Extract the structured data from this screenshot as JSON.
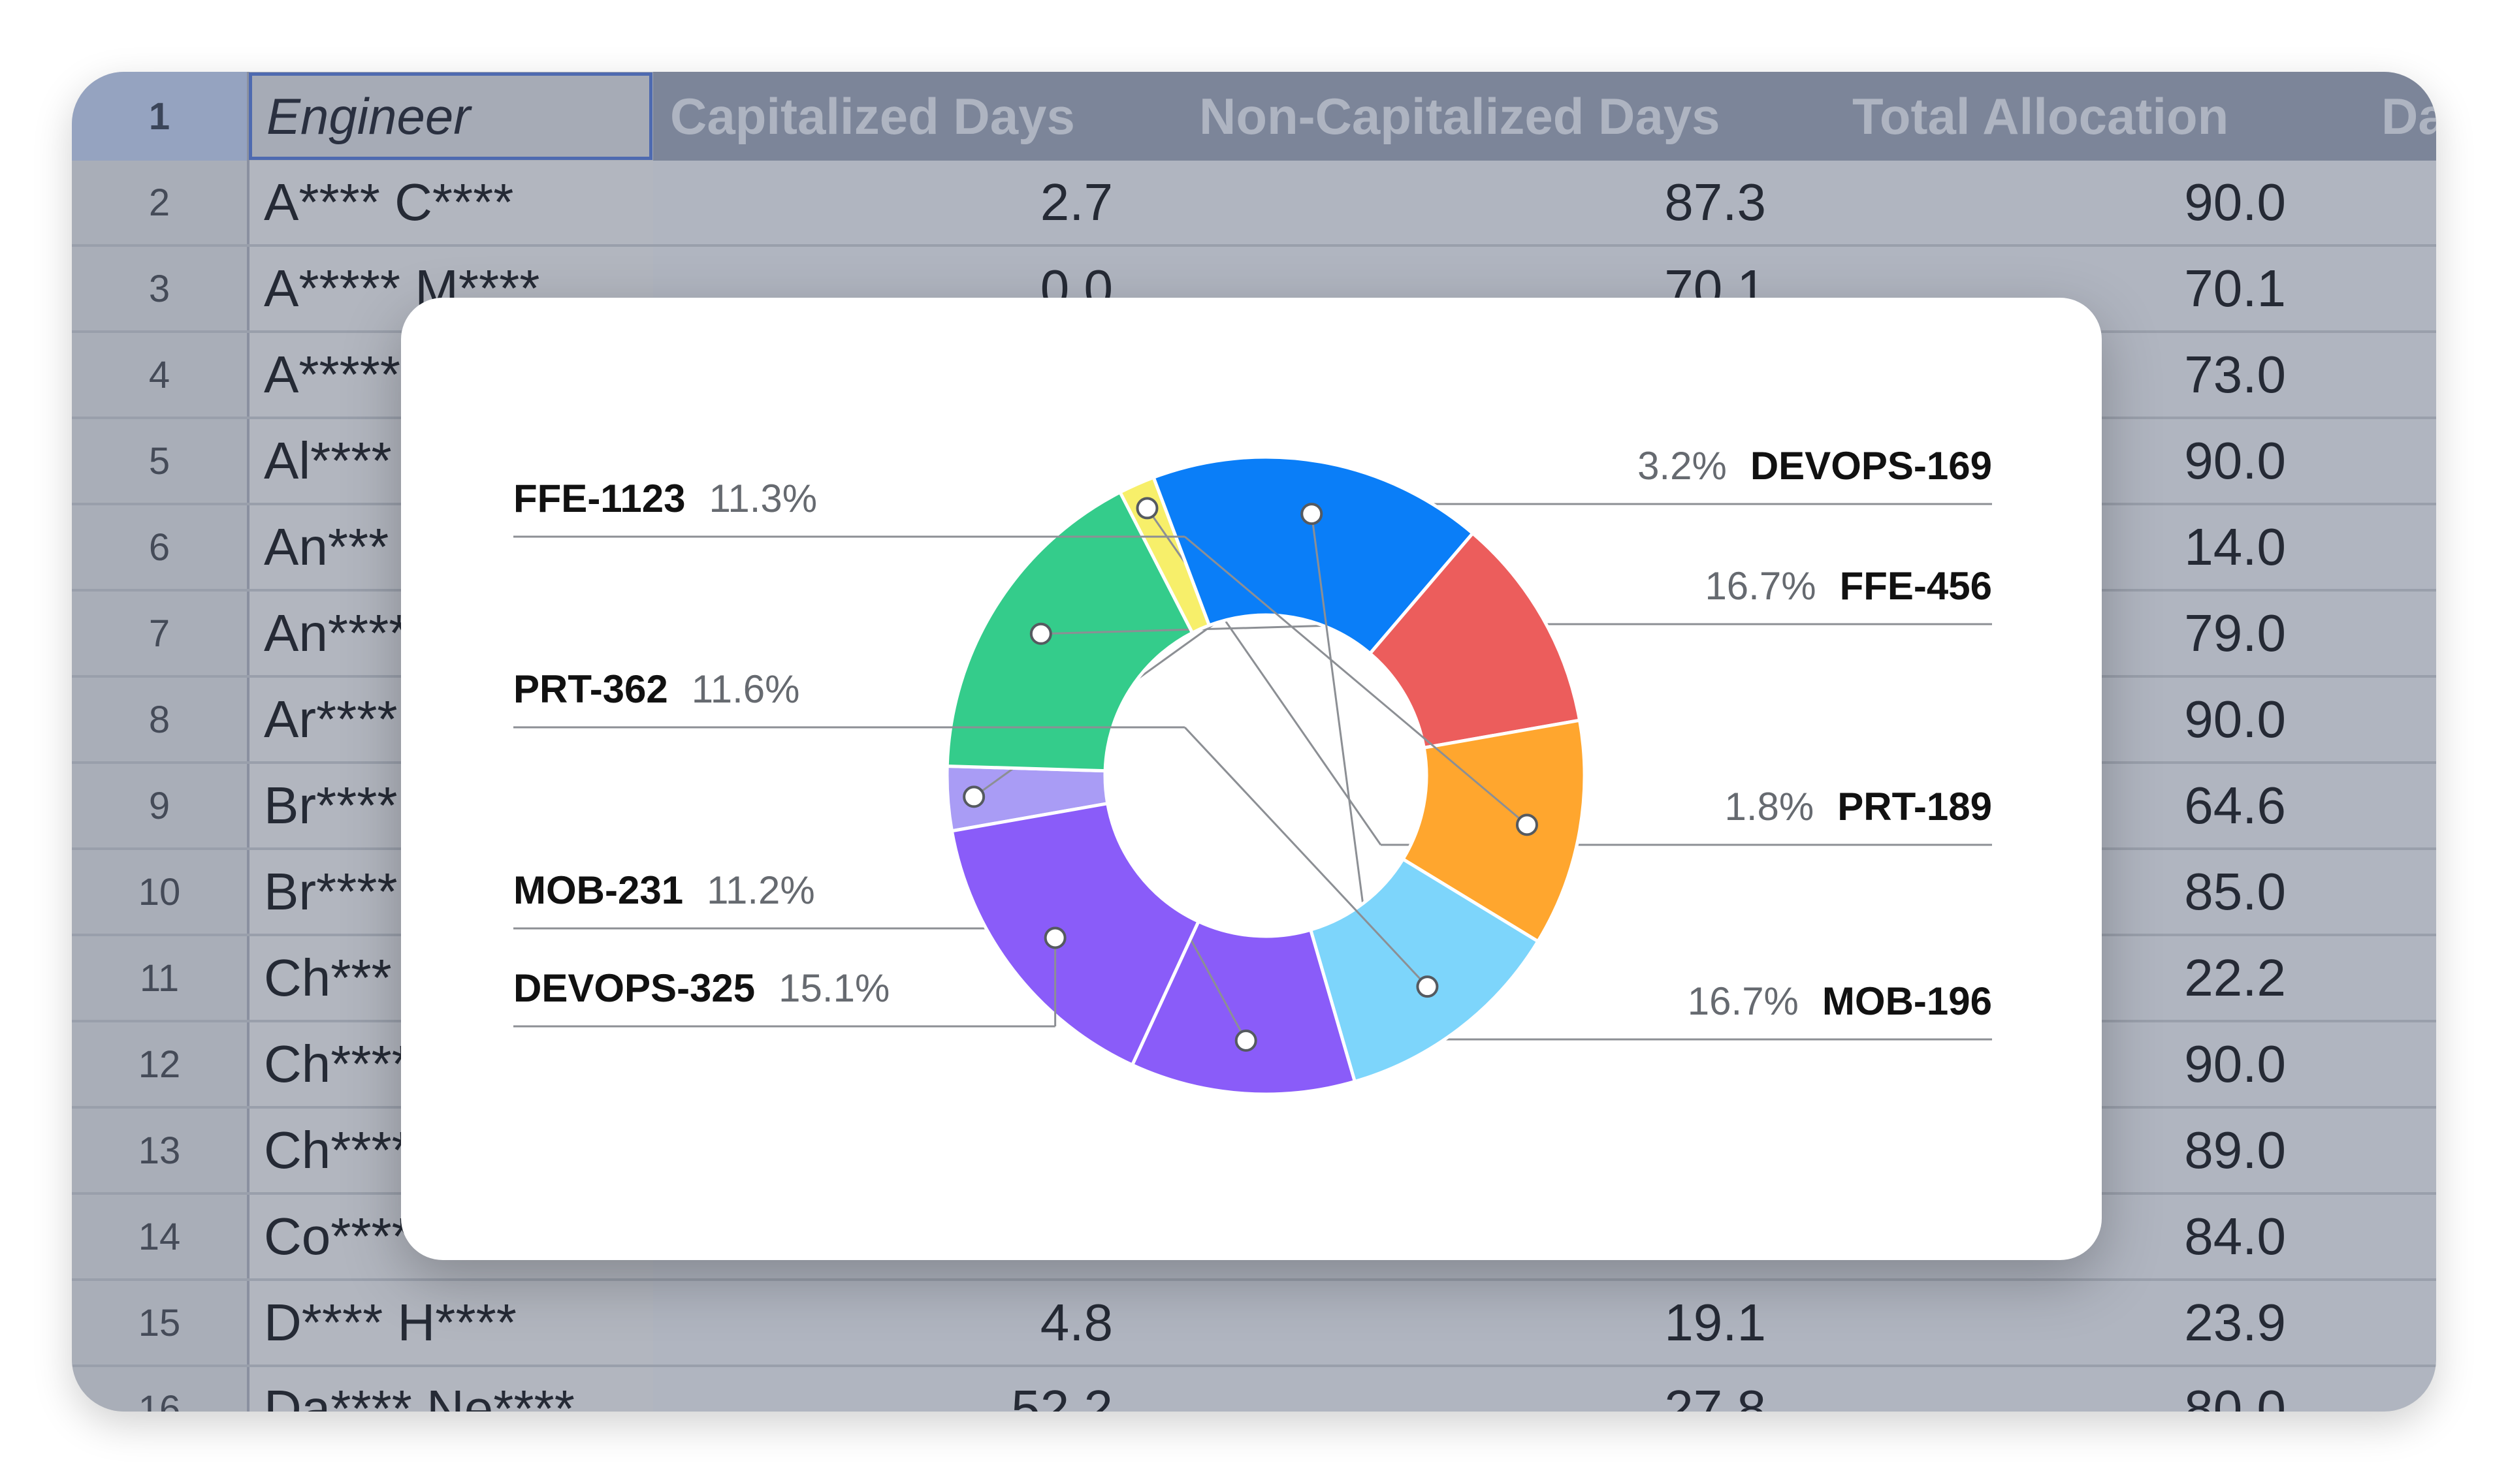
{
  "table": {
    "header": {
      "row_number": "1",
      "columns": [
        "Engineer",
        "Capitalized Days",
        "Non-Capitalized Days",
        "Total Allocation",
        "Da"
      ]
    },
    "rows": [
      {
        "n": "2",
        "engineer": "A**** C****",
        "cap": "2.7",
        "noncap": "87.3",
        "total": "90.0"
      },
      {
        "n": "3",
        "engineer": "A***** M****",
        "cap": "0.0",
        "noncap": "70.1",
        "total": "70.1"
      },
      {
        "n": "4",
        "engineer": "A*****",
        "cap": "",
        "noncap": "",
        "total": "73.0"
      },
      {
        "n": "5",
        "engineer": "Al****",
        "cap": "",
        "noncap": "",
        "total": "90.0"
      },
      {
        "n": "6",
        "engineer": "An***",
        "cap": "",
        "noncap": "",
        "total": "14.0"
      },
      {
        "n": "7",
        "engineer": "An****",
        "cap": "",
        "noncap": "",
        "total": "79.0"
      },
      {
        "n": "8",
        "engineer": "Ar****",
        "cap": "",
        "noncap": "",
        "total": "90.0"
      },
      {
        "n": "9",
        "engineer": "Br****",
        "cap": "",
        "noncap": "",
        "total": "64.6"
      },
      {
        "n": "10",
        "engineer": "Br****",
        "cap": "",
        "noncap": "",
        "total": "85.0"
      },
      {
        "n": "11",
        "engineer": "Ch***",
        "cap": "",
        "noncap": "",
        "total": "22.2"
      },
      {
        "n": "12",
        "engineer": "Ch****",
        "cap": "",
        "noncap": "",
        "total": "90.0"
      },
      {
        "n": "13",
        "engineer": "Ch****",
        "cap": "",
        "noncap": "",
        "total": "89.0"
      },
      {
        "n": "14",
        "engineer": "Co****",
        "cap": "",
        "noncap": "",
        "total": "84.0"
      },
      {
        "n": "15",
        "engineer": "D**** H****",
        "cap": "4.8",
        "noncap": "19.1",
        "total": "23.9"
      },
      {
        "n": "16",
        "engineer": "Da**** Ne****",
        "cap": "52.2",
        "noncap": "27.8",
        "total": "80.0"
      }
    ]
  },
  "chart_data": {
    "type": "pie",
    "variant": "donut",
    "title": "",
    "slices": [
      {
        "label": "DEVOPS-169",
        "value": 3.2,
        "display": "3.2%",
        "color": "#a99cf5",
        "side": "right"
      },
      {
        "label": "FFE-456",
        "value": 16.7,
        "display": "16.7%",
        "color": "#34cc8b",
        "side": "right"
      },
      {
        "label": "PRT-189",
        "value": 1.8,
        "display": "1.8%",
        "color": "#f7ef6a",
        "side": "right"
      },
      {
        "label": "MOB-196",
        "value": 16.7,
        "display": "16.7%",
        "color": "#0a7ef8",
        "side": "right"
      },
      {
        "label": "",
        "value": 10.8,
        "display": "",
        "color": "#ec5d5c",
        "side": "none"
      },
      {
        "label": "FFE-1123",
        "value": 11.3,
        "display": "11.3%",
        "color": "#ffa62e",
        "side": "left"
      },
      {
        "label": "PRT-362",
        "value": 11.6,
        "display": "11.6%",
        "color": "#7dd5fb",
        "side": "left"
      },
      {
        "label": "MOB-231",
        "value": 11.2,
        "display": "11.2%",
        "color": "#8a5cf9",
        "side": "left"
      },
      {
        "label": "DEVOPS-325",
        "value": 15.1,
        "display": "15.1%",
        "color": "#8a5cf9",
        "side": "left"
      }
    ],
    "legend": "callout labels"
  }
}
